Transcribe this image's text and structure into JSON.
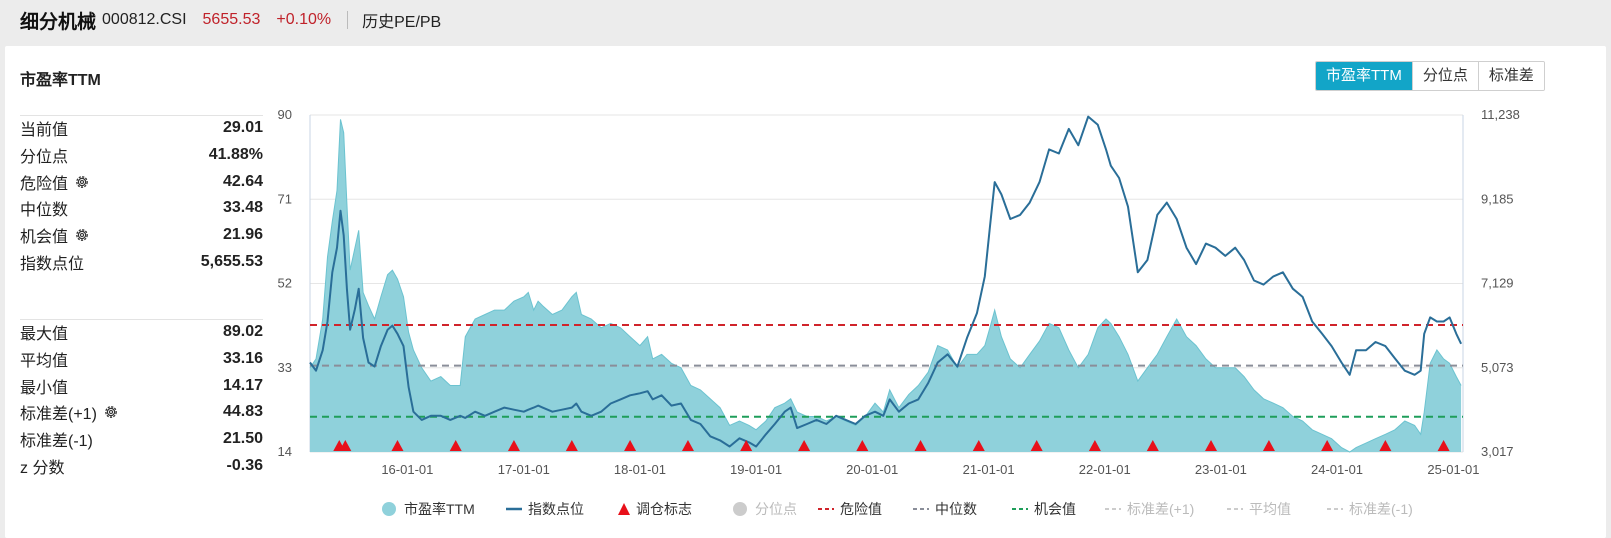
{
  "header": {
    "name": "细分机械",
    "code": "000812.CSI",
    "price": "5655.53",
    "change": "+0.10%",
    "history_link": "历史PE/PB"
  },
  "panel": {
    "title": "市盈率TTM",
    "tabs": [
      {
        "label": "市盈率TTM",
        "active": true
      },
      {
        "label": "分位点",
        "active": false
      },
      {
        "label": "标准差",
        "active": false
      }
    ]
  },
  "stats_top": [
    {
      "label": "当前值",
      "value": "29.01",
      "gear": false
    },
    {
      "label": "分位点",
      "value": "41.88%",
      "gear": false
    },
    {
      "label": "危险值",
      "value": "42.64",
      "gear": true
    },
    {
      "label": "中位数",
      "value": "33.48",
      "gear": false
    },
    {
      "label": "机会值",
      "value": "21.96",
      "gear": true
    },
    {
      "label": "指数点位",
      "value": "5,655.53",
      "gear": false
    }
  ],
  "stats_bottom": [
    {
      "label": "最大值",
      "value": "89.02",
      "gear": false
    },
    {
      "label": "平均值",
      "value": "33.16",
      "gear": false
    },
    {
      "label": "最小值",
      "value": "14.17",
      "gear": false
    },
    {
      "label": "标准差(+1)",
      "value": "44.83",
      "gear": true
    },
    {
      "label": "标准差(-1)",
      "value": "21.50",
      "gear": false
    },
    {
      "label": "z 分数",
      "value": "-0.36",
      "gear": false
    }
  ],
  "colors": {
    "accent": "#12a5c8",
    "area_fill": "#8fd1db",
    "area_stroke": "#6cc3d0",
    "index_line": "#2a6e98",
    "danger": "#d0242b",
    "median": "#8a8e99",
    "opportunity": "#1f9e5a",
    "marker": "#e8101a",
    "up": "#c0222a"
  },
  "chart_data": {
    "type": "area",
    "x_start": "2015-03-01",
    "x_end": "2025-01-31",
    "x_ticks": [
      "16-01-01",
      "17-01-01",
      "18-01-01",
      "19-01-01",
      "20-01-01",
      "21-01-01",
      "22-01-01",
      "23-01-01",
      "24-01-01",
      "25-01-01"
    ],
    "y_left_ticks": [
      "90",
      "71",
      "52",
      "33",
      "14"
    ],
    "y_right_ticks": [
      "11,238",
      "9,185",
      "7,129",
      "5,073",
      "3,017"
    ],
    "y_left_range": [
      14,
      90
    ],
    "y_right_range": [
      3017,
      11238
    ],
    "legend": [
      {
        "label": "市盈率TTM",
        "kind": "dot",
        "color": "#8fd1db",
        "enabled": true
      },
      {
        "label": "指数点位",
        "kind": "line",
        "color": "#2a6e98",
        "enabled": true
      },
      {
        "label": "调仓标志",
        "kind": "triangle",
        "color": "#e8101a",
        "enabled": true
      },
      {
        "label": "分位点",
        "kind": "dot",
        "color": "#cfcfcf",
        "enabled": false
      },
      {
        "label": "危险值",
        "kind": "dash",
        "color": "#d0242b",
        "enabled": true
      },
      {
        "label": "中位数",
        "kind": "dash",
        "color": "#8a8e99",
        "enabled": true
      },
      {
        "label": "机会值",
        "kind": "dash",
        "color": "#1f9e5a",
        "enabled": true
      },
      {
        "label": "标准差(+1)",
        "kind": "dash",
        "color": "#cfcfcf",
        "enabled": false
      },
      {
        "label": "平均值",
        "kind": "dash",
        "color": "#cfcfcf",
        "enabled": false
      },
      {
        "label": "标准差(-1)",
        "kind": "dash",
        "color": "#cfcfcf",
        "enabled": false
      }
    ],
    "ref_lines": {
      "danger": 42.64,
      "median": 33.48,
      "opportunity": 21.96
    },
    "pe_series": [
      [
        "2015-03-01",
        33
      ],
      [
        "2015-03-20",
        35
      ],
      [
        "2015-04-10",
        44
      ],
      [
        "2015-04-25",
        58
      ],
      [
        "2015-05-10",
        66
      ],
      [
        "2015-05-25",
        73
      ],
      [
        "2015-06-05",
        89
      ],
      [
        "2015-06-15",
        86
      ],
      [
        "2015-06-25",
        70
      ],
      [
        "2015-07-05",
        55
      ],
      [
        "2015-07-20",
        60
      ],
      [
        "2015-08-01",
        64
      ],
      [
        "2015-08-15",
        50
      ],
      [
        "2015-09-01",
        47
      ],
      [
        "2015-09-20",
        44
      ],
      [
        "2015-10-10",
        49
      ],
      [
        "2015-10-31",
        54
      ],
      [
        "2015-11-15",
        55
      ],
      [
        "2015-12-01",
        53
      ],
      [
        "2015-12-20",
        49
      ],
      [
        "2016-01-05",
        41
      ],
      [
        "2016-01-20",
        37
      ],
      [
        "2016-02-15",
        33
      ],
      [
        "2016-03-15",
        30
      ],
      [
        "2016-04-15",
        31
      ],
      [
        "2016-05-15",
        29
      ],
      [
        "2016-06-15",
        29
      ],
      [
        "2016-07-01",
        40
      ],
      [
        "2016-08-01",
        44
      ],
      [
        "2016-09-01",
        45
      ],
      [
        "2016-10-01",
        46
      ],
      [
        "2016-11-01",
        46
      ],
      [
        "2016-12-01",
        48
      ],
      [
        "2017-01-01",
        49
      ],
      [
        "2017-01-15",
        50
      ],
      [
        "2017-02-01",
        46
      ],
      [
        "2017-02-15",
        48
      ],
      [
        "2017-03-01",
        47
      ],
      [
        "2017-04-01",
        45
      ],
      [
        "2017-05-01",
        46
      ],
      [
        "2017-06-01",
        49
      ],
      [
        "2017-06-15",
        50
      ],
      [
        "2017-07-01",
        45
      ],
      [
        "2017-08-01",
        44
      ],
      [
        "2017-09-01",
        42
      ],
      [
        "2017-10-01",
        43
      ],
      [
        "2017-11-01",
        42
      ],
      [
        "2017-12-01",
        40
      ],
      [
        "2018-01-01",
        38
      ],
      [
        "2018-01-25",
        40
      ],
      [
        "2018-02-10",
        35
      ],
      [
        "2018-03-10",
        36
      ],
      [
        "2018-04-10",
        34
      ],
      [
        "2018-05-10",
        33
      ],
      [
        "2018-06-10",
        29
      ],
      [
        "2018-07-10",
        28
      ],
      [
        "2018-08-10",
        26
      ],
      [
        "2018-09-10",
        24
      ],
      [
        "2018-10-10",
        20
      ],
      [
        "2018-11-10",
        21
      ],
      [
        "2018-12-10",
        20
      ],
      [
        "2019-01-01",
        19
      ],
      [
        "2019-02-01",
        21
      ],
      [
        "2019-03-01",
        24
      ],
      [
        "2019-04-01",
        25
      ],
      [
        "2019-04-20",
        26
      ],
      [
        "2019-05-10",
        23
      ],
      [
        "2019-06-10",
        22
      ],
      [
        "2019-07-10",
        22
      ],
      [
        "2019-08-10",
        21
      ],
      [
        "2019-09-10",
        22
      ],
      [
        "2019-10-10",
        21
      ],
      [
        "2019-11-10",
        20
      ],
      [
        "2019-12-10",
        22
      ],
      [
        "2020-01-10",
        25
      ],
      [
        "2020-02-05",
        23
      ],
      [
        "2020-02-25",
        28
      ],
      [
        "2020-03-25",
        24
      ],
      [
        "2020-04-25",
        27
      ],
      [
        "2020-05-25",
        29
      ],
      [
        "2020-06-25",
        32
      ],
      [
        "2020-07-25",
        38
      ],
      [
        "2020-08-25",
        37
      ],
      [
        "2020-09-25",
        33
      ],
      [
        "2020-10-25",
        36
      ],
      [
        "2020-11-25",
        36
      ],
      [
        "2020-12-20",
        38
      ],
      [
        "2021-01-05",
        42
      ],
      [
        "2021-01-20",
        46
      ],
      [
        "2021-02-10",
        40
      ],
      [
        "2021-03-10",
        35
      ],
      [
        "2021-04-10",
        33
      ],
      [
        "2021-05-10",
        36
      ],
      [
        "2021-06-10",
        39
      ],
      [
        "2021-07-10",
        43
      ],
      [
        "2021-08-10",
        42
      ],
      [
        "2021-09-10",
        37
      ],
      [
        "2021-10-10",
        33
      ],
      [
        "2021-11-10",
        36
      ],
      [
        "2021-12-10",
        42
      ],
      [
        "2022-01-05",
        44
      ],
      [
        "2022-01-20",
        43
      ],
      [
        "2022-02-15",
        40
      ],
      [
        "2022-03-15",
        36
      ],
      [
        "2022-04-15",
        30
      ],
      [
        "2022-05-15",
        33
      ],
      [
        "2022-06-15",
        36
      ],
      [
        "2022-07-15",
        40
      ],
      [
        "2022-08-15",
        44
      ],
      [
        "2022-09-15",
        40
      ],
      [
        "2022-10-15",
        38
      ],
      [
        "2022-11-15",
        35
      ],
      [
        "2022-12-15",
        33
      ],
      [
        "2023-01-15",
        33
      ],
      [
        "2023-02-15",
        33
      ],
      [
        "2023-03-15",
        31
      ],
      [
        "2023-04-15",
        28
      ],
      [
        "2023-05-15",
        26
      ],
      [
        "2023-06-15",
        25
      ],
      [
        "2023-07-15",
        24
      ],
      [
        "2023-08-15",
        22
      ],
      [
        "2023-09-15",
        21
      ],
      [
        "2023-10-15",
        19
      ],
      [
        "2023-11-15",
        18
      ],
      [
        "2023-12-15",
        17
      ],
      [
        "2024-01-15",
        15
      ],
      [
        "2024-02-10",
        14
      ],
      [
        "2024-03-01",
        15
      ],
      [
        "2024-04-01",
        16
      ],
      [
        "2024-05-01",
        17
      ],
      [
        "2024-06-01",
        18
      ],
      [
        "2024-07-01",
        19
      ],
      [
        "2024-08-01",
        21
      ],
      [
        "2024-09-01",
        20
      ],
      [
        "2024-09-20",
        18
      ],
      [
        "2024-10-01",
        23
      ],
      [
        "2024-10-20",
        34
      ],
      [
        "2024-11-10",
        37
      ],
      [
        "2024-12-01",
        35
      ],
      [
        "2024-12-20",
        34
      ],
      [
        "2025-01-10",
        31
      ],
      [
        "2025-01-25",
        29
      ]
    ],
    "index_series": [
      [
        "2015-03-01",
        5200
      ],
      [
        "2015-03-20",
        5000
      ],
      [
        "2015-04-10",
        5500
      ],
      [
        "2015-04-25",
        6200
      ],
      [
        "2015-05-10",
        7400
      ],
      [
        "2015-05-25",
        8000
      ],
      [
        "2015-06-05",
        8900
      ],
      [
        "2015-06-15",
        8300
      ],
      [
        "2015-06-25",
        7000
      ],
      [
        "2015-07-05",
        6000
      ],
      [
        "2015-07-20",
        6500
      ],
      [
        "2015-08-01",
        7000
      ],
      [
        "2015-08-15",
        5800
      ],
      [
        "2015-09-01",
        5200
      ],
      [
        "2015-09-20",
        5100
      ],
      [
        "2015-10-10",
        5600
      ],
      [
        "2015-10-31",
        6000
      ],
      [
        "2015-11-15",
        6100
      ],
      [
        "2015-12-01",
        5900
      ],
      [
        "2015-12-20",
        5600
      ],
      [
        "2016-01-05",
        4600
      ],
      [
        "2016-01-20",
        4000
      ],
      [
        "2016-02-15",
        3800
      ],
      [
        "2016-03-15",
        3900
      ],
      [
        "2016-04-15",
        3900
      ],
      [
        "2016-05-15",
        3800
      ],
      [
        "2016-06-15",
        3900
      ],
      [
        "2016-07-01",
        3850
      ],
      [
        "2016-08-01",
        4000
      ],
      [
        "2016-09-01",
        3900
      ],
      [
        "2016-10-01",
        4000
      ],
      [
        "2016-11-01",
        4100
      ],
      [
        "2016-12-01",
        4050
      ],
      [
        "2017-01-01",
        4000
      ],
      [
        "2017-01-15",
        4050
      ],
      [
        "2017-02-01",
        4100
      ],
      [
        "2017-02-15",
        4150
      ],
      [
        "2017-03-01",
        4100
      ],
      [
        "2017-04-01",
        4000
      ],
      [
        "2017-05-01",
        4050
      ],
      [
        "2017-06-01",
        4100
      ],
      [
        "2017-06-15",
        4200
      ],
      [
        "2017-07-01",
        4000
      ],
      [
        "2017-08-01",
        3900
      ],
      [
        "2017-09-01",
        4000
      ],
      [
        "2017-10-01",
        4200
      ],
      [
        "2017-11-01",
        4300
      ],
      [
        "2017-12-01",
        4400
      ],
      [
        "2018-01-01",
        4450
      ],
      [
        "2018-01-25",
        4500
      ],
      [
        "2018-02-10",
        4300
      ],
      [
        "2018-03-10",
        4400
      ],
      [
        "2018-04-10",
        4150
      ],
      [
        "2018-05-10",
        4200
      ],
      [
        "2018-06-10",
        3800
      ],
      [
        "2018-07-10",
        3700
      ],
      [
        "2018-08-10",
        3400
      ],
      [
        "2018-09-10",
        3300
      ],
      [
        "2018-10-10",
        3150
      ],
      [
        "2018-11-10",
        3350
      ],
      [
        "2018-12-10",
        3250
      ],
      [
        "2019-01-01",
        3150
      ],
      [
        "2019-02-01",
        3450
      ],
      [
        "2019-03-01",
        3700
      ],
      [
        "2019-04-01",
        4000
      ],
      [
        "2019-04-20",
        4100
      ],
      [
        "2019-05-10",
        3600
      ],
      [
        "2019-06-10",
        3700
      ],
      [
        "2019-07-10",
        3800
      ],
      [
        "2019-08-10",
        3700
      ],
      [
        "2019-09-10",
        3900
      ],
      [
        "2019-10-10",
        3800
      ],
      [
        "2019-11-10",
        3700
      ],
      [
        "2019-12-10",
        3900
      ],
      [
        "2020-01-10",
        4000
      ],
      [
        "2020-02-05",
        3900
      ],
      [
        "2020-02-25",
        4300
      ],
      [
        "2020-03-25",
        4000
      ],
      [
        "2020-04-25",
        4200
      ],
      [
        "2020-05-25",
        4300
      ],
      [
        "2020-06-25",
        4700
      ],
      [
        "2020-07-25",
        5200
      ],
      [
        "2020-08-25",
        5400
      ],
      [
        "2020-09-25",
        5100
      ],
      [
        "2020-10-25",
        5800
      ],
      [
        "2020-11-25",
        6400
      ],
      [
        "2020-12-20",
        7300
      ],
      [
        "2021-01-05",
        8500
      ],
      [
        "2021-01-20",
        9600
      ],
      [
        "2021-02-10",
        9300
      ],
      [
        "2021-03-10",
        8700
      ],
      [
        "2021-04-10",
        8800
      ],
      [
        "2021-05-10",
        9100
      ],
      [
        "2021-06-10",
        9600
      ],
      [
        "2021-07-10",
        10400
      ],
      [
        "2021-08-10",
        10300
      ],
      [
        "2021-09-10",
        10900
      ],
      [
        "2021-10-10",
        10500
      ],
      [
        "2021-11-10",
        11200
      ],
      [
        "2021-12-10",
        11000
      ],
      [
        "2022-01-05",
        10400
      ],
      [
        "2022-01-20",
        10000
      ],
      [
        "2022-02-15",
        9700
      ],
      [
        "2022-03-15",
        9000
      ],
      [
        "2022-04-15",
        7400
      ],
      [
        "2022-05-15",
        7700
      ],
      [
        "2022-06-15",
        8800
      ],
      [
        "2022-07-15",
        9100
      ],
      [
        "2022-08-15",
        8700
      ],
      [
        "2022-09-15",
        8000
      ],
      [
        "2022-10-15",
        7600
      ],
      [
        "2022-11-15",
        8100
      ],
      [
        "2022-12-15",
        8000
      ],
      [
        "2023-01-15",
        7800
      ],
      [
        "2023-02-15",
        8000
      ],
      [
        "2023-03-15",
        7700
      ],
      [
        "2023-04-15",
        7200
      ],
      [
        "2023-05-15",
        7100
      ],
      [
        "2023-06-15",
        7300
      ],
      [
        "2023-07-15",
        7400
      ],
      [
        "2023-08-15",
        7000
      ],
      [
        "2023-09-15",
        6800
      ],
      [
        "2023-10-15",
        6200
      ],
      [
        "2023-11-15",
        5900
      ],
      [
        "2023-12-15",
        5600
      ],
      [
        "2024-01-15",
        5200
      ],
      [
        "2024-02-10",
        4900
      ],
      [
        "2024-03-01",
        5500
      ],
      [
        "2024-04-01",
        5500
      ],
      [
        "2024-05-01",
        5700
      ],
      [
        "2024-06-01",
        5600
      ],
      [
        "2024-07-01",
        5300
      ],
      [
        "2024-08-01",
        5000
      ],
      [
        "2024-09-01",
        4900
      ],
      [
        "2024-09-20",
        5000
      ],
      [
        "2024-10-01",
        5900
      ],
      [
        "2024-10-20",
        6300
      ],
      [
        "2024-11-10",
        6200
      ],
      [
        "2024-12-01",
        6200
      ],
      [
        "2024-12-20",
        6300
      ],
      [
        "2025-01-10",
        5900
      ],
      [
        "2025-01-25",
        5656
      ]
    ],
    "rebalance_dates": [
      "2015-06-01",
      "2015-06-20",
      "2015-12-01",
      "2016-06-01",
      "2016-12-01",
      "2017-06-01",
      "2017-12-01",
      "2018-06-01",
      "2018-12-01",
      "2019-06-01",
      "2019-12-01",
      "2020-06-01",
      "2020-12-01",
      "2021-06-01",
      "2021-12-01",
      "2022-06-01",
      "2022-12-01",
      "2023-06-01",
      "2023-12-01",
      "2024-06-01",
      "2024-12-01"
    ]
  }
}
